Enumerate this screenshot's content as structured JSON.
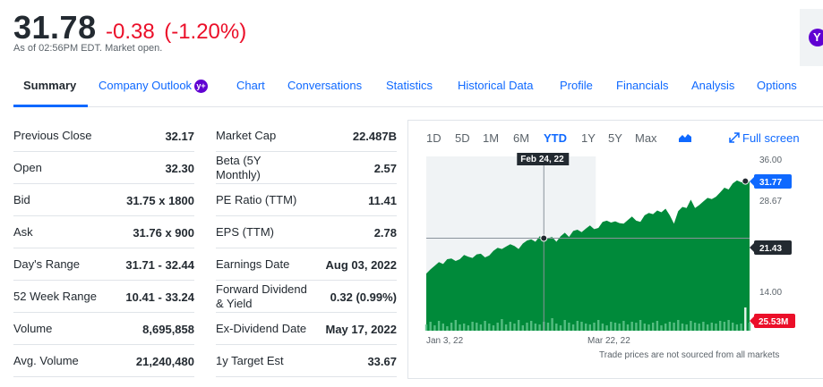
{
  "quote": {
    "price": "31.78",
    "change": "-0.38",
    "change_pct": "(-1.20%)",
    "as_of": "As of 02:56PM EDT. Market open."
  },
  "colors": {
    "negative": "#eb0f29",
    "link": "#0f69ff",
    "positive_fill": "#008a3a",
    "yahoo_purple": "#6001d2"
  },
  "corner": {
    "icon": "yahoo-y-icon",
    "glyph": "Y"
  },
  "tabs": [
    {
      "label": "Summary"
    },
    {
      "label": "Company Outlook",
      "badge": "y+"
    },
    {
      "label": "Chart"
    },
    {
      "label": "Conversations"
    },
    {
      "label": "Statistics"
    },
    {
      "label": "Historical Data"
    },
    {
      "label": "Profile"
    },
    {
      "label": "Financials"
    },
    {
      "label": "Analysis"
    },
    {
      "label": "Options"
    }
  ],
  "left_stats": [
    {
      "label": "Previous Close",
      "value": "32.17"
    },
    {
      "label": "Open",
      "value": "32.30"
    },
    {
      "label": "Bid",
      "value": "31.75 x 1800"
    },
    {
      "label": "Ask",
      "value": "31.76 x 900"
    },
    {
      "label": "Day's Range",
      "value": "31.71 - 32.44"
    },
    {
      "label": "52 Week Range",
      "value": "10.41 - 33.24"
    },
    {
      "label": "Volume",
      "value": "8,695,858"
    },
    {
      "label": "Avg. Volume",
      "value": "21,240,480"
    }
  ],
  "right_stats": [
    {
      "label": "Market Cap",
      "value": "22.487B"
    },
    {
      "label": "Beta (5Y Monthly)",
      "value": "2.57"
    },
    {
      "label": "PE Ratio (TTM)",
      "value": "11.41"
    },
    {
      "label": "EPS (TTM)",
      "value": "2.78"
    },
    {
      "label": "Earnings Date",
      "value": "Aug 03, 2022"
    },
    {
      "label": "Forward Dividend & Yield",
      "value": "0.32 (0.99%)"
    },
    {
      "label": "Ex-Dividend Date",
      "value": "May 17, 2022"
    },
    {
      "label": "1y Target Est",
      "value": "33.67"
    }
  ],
  "chart": {
    "ranges": [
      "1D",
      "5D",
      "1M",
      "6M",
      "YTD",
      "1Y",
      "5Y",
      "Max"
    ],
    "selected_range": "YTD",
    "chart_type_icon": "area-chart-icon",
    "fullscreen_label": "Full screen",
    "fullscreen_icon": "expand-icon",
    "footnote": "Trade prices are not sourced from all markets"
  },
  "chart_data": {
    "type": "area",
    "x_tick_labels": [
      "Jan 3, 22",
      "Mar 22, 22"
    ],
    "y_tick_labels": [
      "36.00",
      "28.67",
      "14.00"
    ],
    "ylim": [
      7,
      36
    ],
    "crosshair": {
      "date_label": "Feb 24, 22",
      "value_label": "21.43"
    },
    "current_price_label": "31.77",
    "volume_label": "25.53M",
    "series": [
      {
        "values": [
          16.5,
          17.2,
          17.8,
          18.4,
          18.1,
          18.9,
          19.0,
          18.6,
          18.9,
          19.6,
          19.3,
          19.1,
          19.7,
          19.8,
          19.2,
          19.5,
          20.3,
          20.8,
          20.6,
          21.0,
          21.4,
          21.1,
          20.6,
          21.5,
          22.0,
          22.2,
          21.8,
          22.7,
          22.4,
          22.4,
          22.6,
          21.8,
          22.7,
          23.3,
          22.6,
          23.6,
          23.8,
          23.4,
          24.0,
          24.5,
          23.9,
          24.1,
          25.1,
          25.3,
          25.0,
          25.2,
          24.9,
          24.8,
          25.4,
          26.0,
          25.3,
          25.1,
          26.2,
          26.6,
          26.4,
          27.0,
          26.7,
          27.3,
          26.2,
          24.8,
          26.9,
          27.6,
          27.4,
          28.8,
          27.4,
          27.9,
          28.5,
          29.1,
          28.9,
          29.3,
          30.0,
          30.8,
          30.5,
          31.5,
          32.0,
          31.7,
          31.9,
          31.8
        ]
      }
    ],
    "volume": [
      7,
      10,
      6,
      11,
      8,
      5,
      9,
      12,
      7,
      8,
      6,
      10,
      9,
      7,
      11,
      8,
      6,
      9,
      13,
      7,
      10,
      8,
      12,
      6,
      9,
      11,
      8,
      7,
      10,
      9,
      14,
      8,
      6,
      12,
      9,
      7,
      11,
      10,
      8,
      7,
      9,
      12,
      8,
      6,
      10,
      9,
      8,
      11,
      7,
      10,
      9,
      12,
      8,
      7,
      9,
      11,
      6,
      8,
      10,
      9,
      12,
      8,
      7,
      11,
      9,
      8,
      10,
      7,
      9,
      8,
      11,
      10,
      12,
      9,
      7,
      8,
      26,
      9
    ]
  }
}
